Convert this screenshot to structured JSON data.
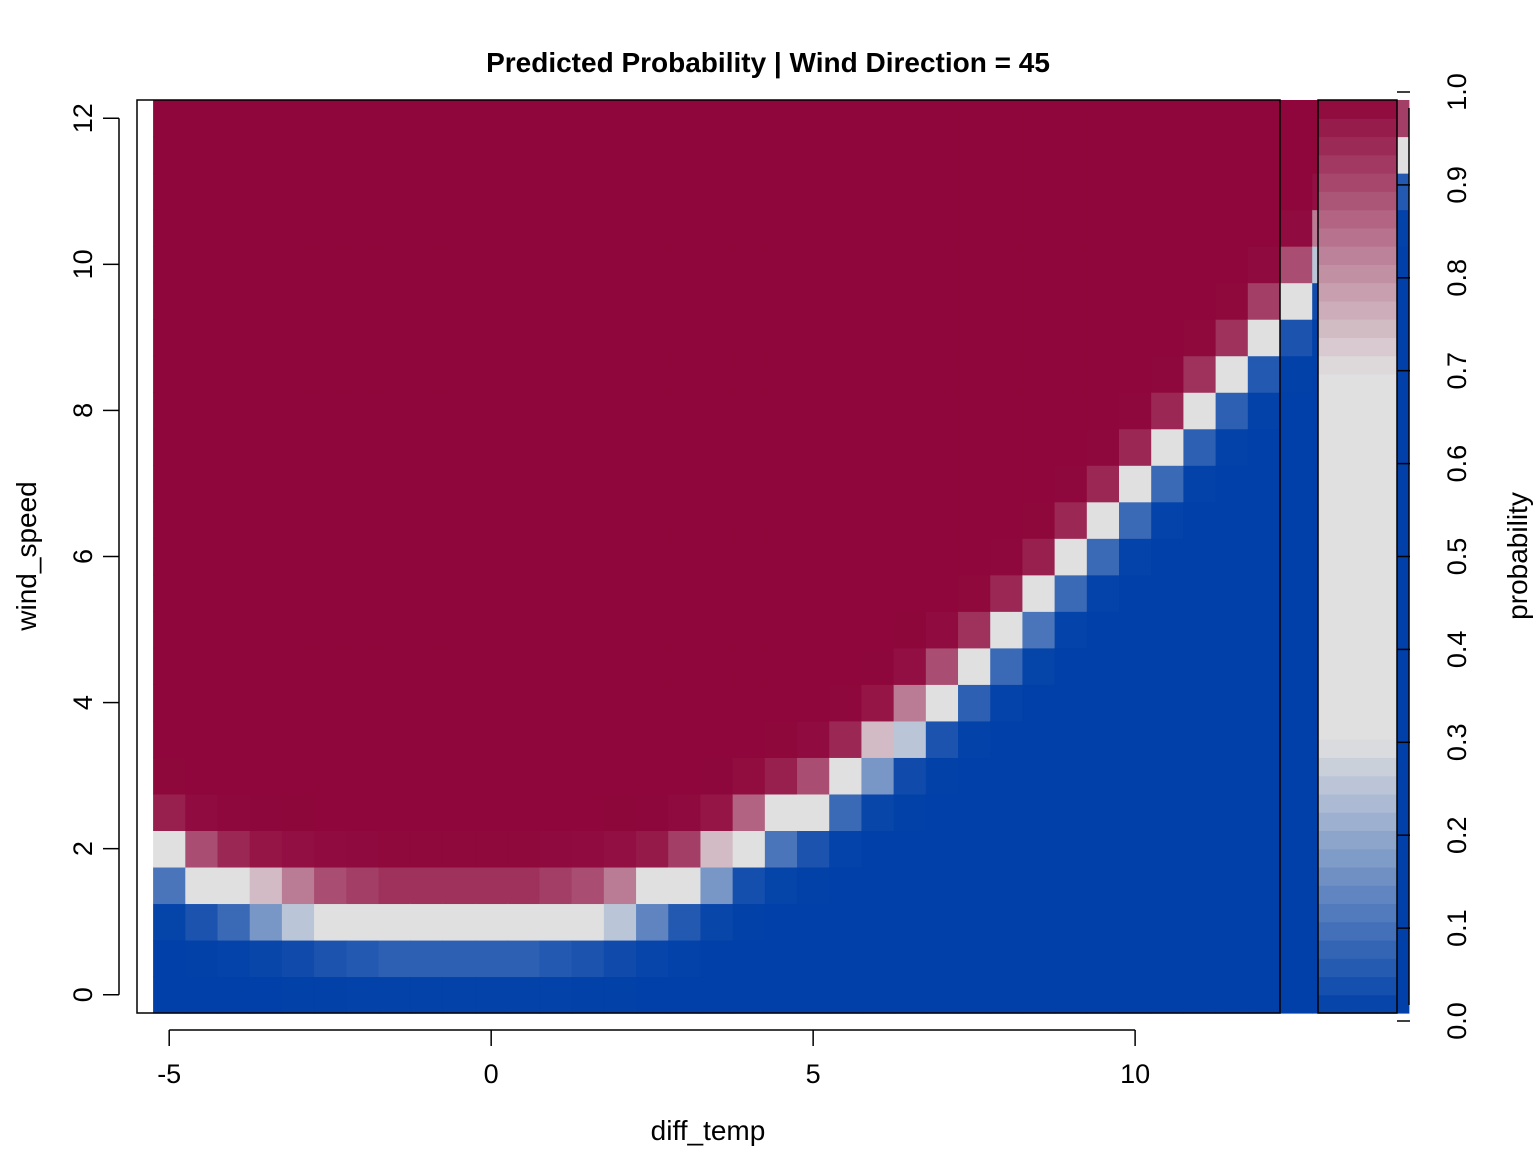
{
  "chart_data": {
    "type": "heatmap",
    "title": "Predicted Probability | Wind Direction = 45",
    "xlabel": "diff_temp",
    "ylabel": "wind_speed",
    "legend_label": "probability",
    "x_range": [
      -5.5,
      12.25
    ],
    "y_range": [
      -0.25,
      12.25
    ],
    "x_ticks": [
      -5,
      0,
      5,
      10
    ],
    "x_tick_labels": [
      "-5",
      "0",
      "5",
      "10"
    ],
    "y_ticks": [
      0,
      2,
      4,
      6,
      8,
      10,
      12
    ],
    "y_tick_labels": [
      "0",
      "2",
      "4",
      "6",
      "8",
      "10",
      "12"
    ],
    "legend_ticks": [
      0.0,
      0.1,
      0.2,
      0.3,
      0.4,
      0.5,
      0.6,
      0.7,
      0.8,
      0.9,
      1.0
    ],
    "legend_tick_labels": [
      "0.0",
      "0.1",
      "0.2",
      "0.3",
      "0.4",
      "0.5",
      "0.6",
      "0.7",
      "0.8",
      "0.9",
      "1.0"
    ],
    "color_low": "#0040A8",
    "color_mid": "#E0E0E0",
    "color_high": "#8E063B",
    "grid": false,
    "legend_position": "right",
    "x_cell_centers_start": -5,
    "x_cell_width": 0.5,
    "y_cell_centers_start": 0,
    "y_cell_height": 0.5,
    "boundary_comment": "values estimated by column: wind_speed level where probability = 0.5 for each diff_temp column",
    "boundary_ws": [
      1.9,
      1.6,
      1.45,
      1.3,
      1.2,
      1.1,
      1.05,
      1.0,
      1.0,
      1.0,
      1.0,
      1.0,
      1.05,
      1.1,
      1.2,
      1.35,
      1.55,
      1.8,
      2.15,
      2.4,
      2.6,
      2.95,
      3.3,
      3.7,
      4.1,
      4.5,
      4.95,
      5.4,
      5.95,
      6.45,
      6.95,
      7.45,
      8.0,
      8.5,
      9.05,
      9.6,
      10.2,
      10.8,
      11.55
    ]
  }
}
